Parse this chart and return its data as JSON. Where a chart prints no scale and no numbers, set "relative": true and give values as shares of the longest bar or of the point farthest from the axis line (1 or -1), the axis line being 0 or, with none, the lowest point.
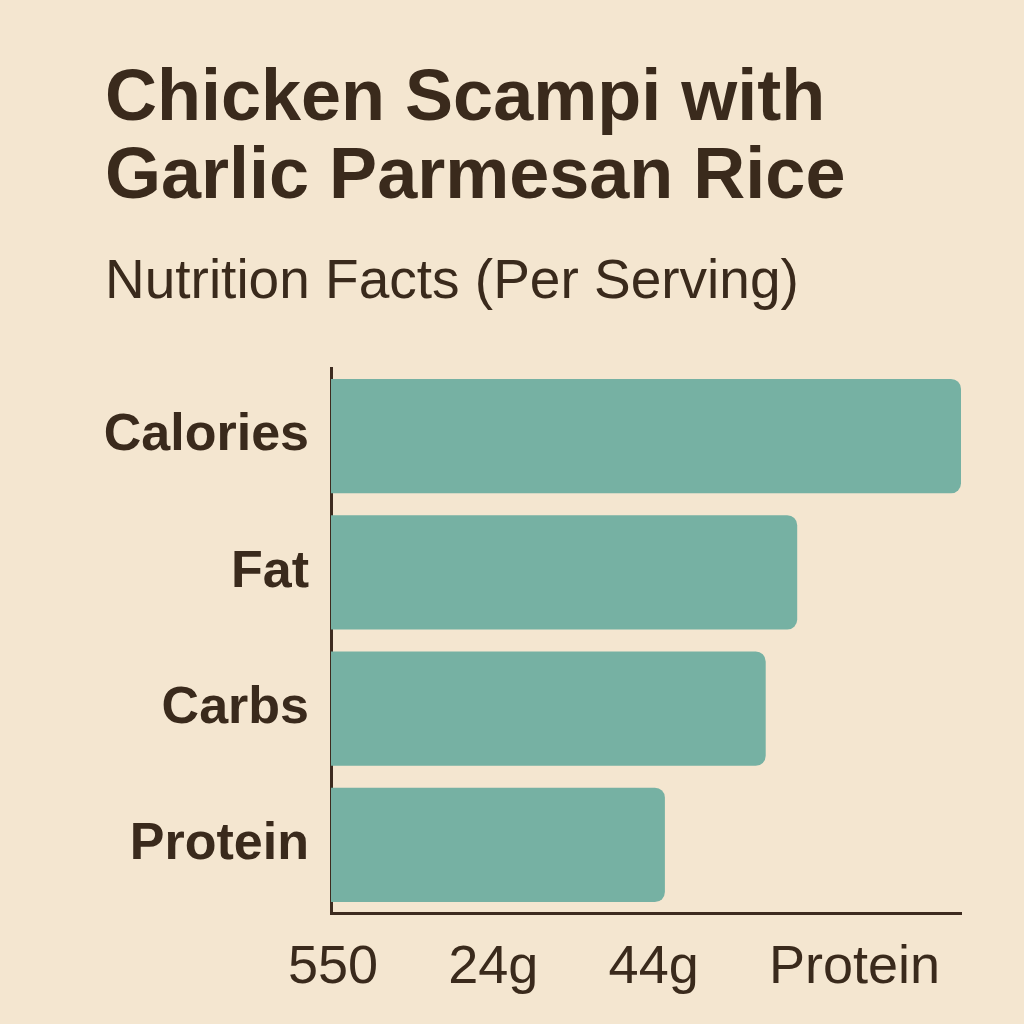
{
  "chart_data": {
    "type": "bar",
    "title": "Chicken Scampi with Garlic Parmesan Rice",
    "subtitle": "Nutrition Facts (Per Serving)",
    "categories": [
      "Calories",
      "Fat",
      "Carbs",
      "Protein"
    ],
    "values": [
      1,
      0.74,
      0.69,
      0.53
    ],
    "color": "#76b1a3",
    "orientation": "horizontal",
    "relative": true,
    "grid": false,
    "legend": false,
    "annotations": [
      "550",
      "24g",
      "44g",
      "Protein"
    ]
  }
}
